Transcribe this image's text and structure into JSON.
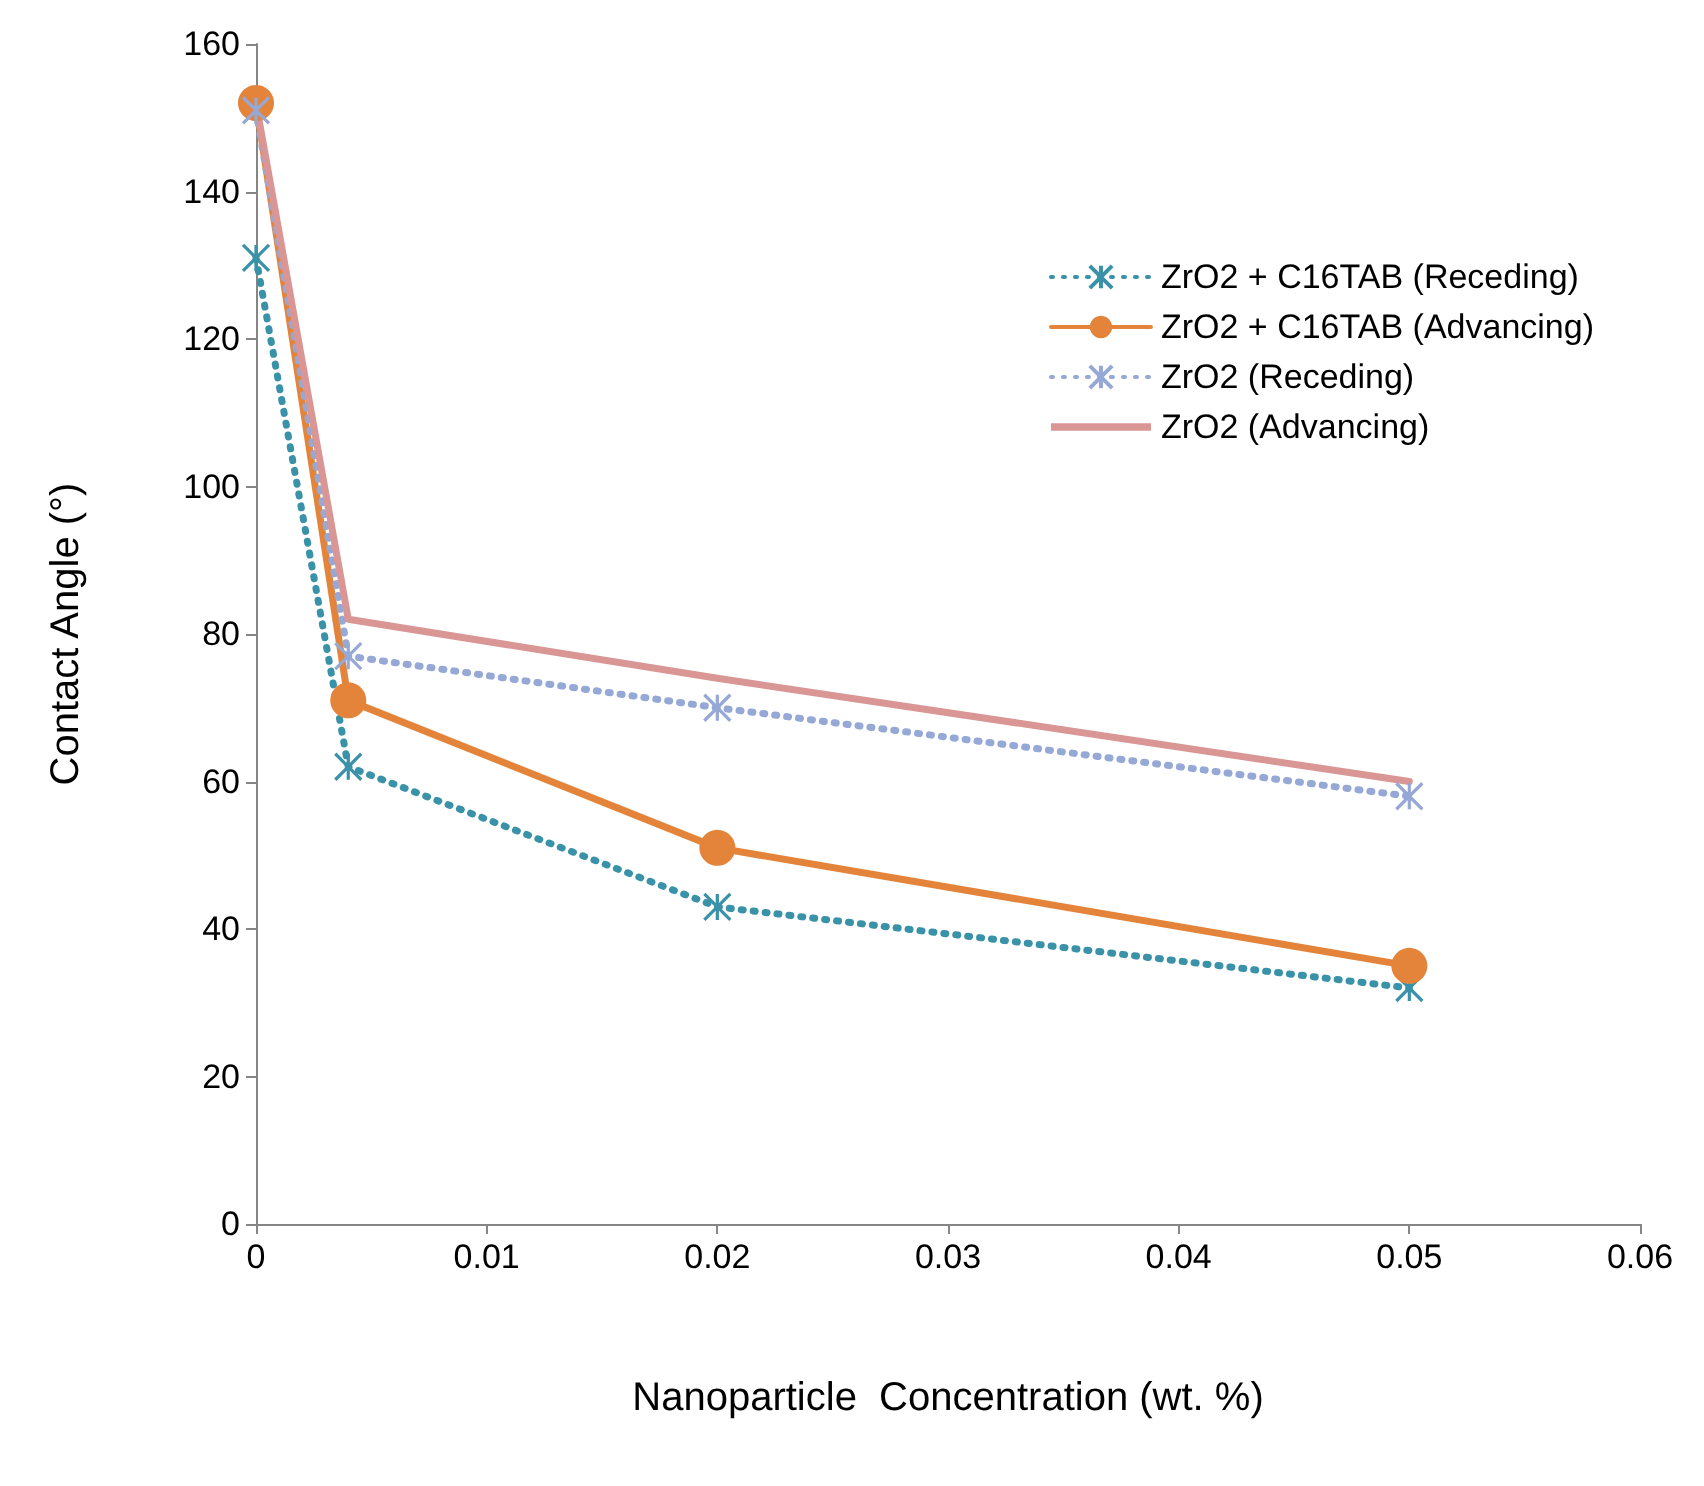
{
  "chart_data": {
    "type": "line",
    "xlabel": "Nanoparticle  Concentration (wt. %)",
    "ylabel": "Contact Angle (°)",
    "x": [
      0,
      0.004,
      0.02,
      0.05
    ],
    "series": [
      {
        "name": "ZrO2 + C16TAB (Receding)",
        "color": "#3a92a8",
        "values": [
          131,
          62,
          43,
          32
        ],
        "marker": "cross",
        "line_style": "dotted"
      },
      {
        "name": "ZrO2 + C16TAB (Advancing)",
        "color": "#e4843a",
        "values": [
          152,
          71,
          51,
          35
        ],
        "marker": "circle",
        "line_style": "solid"
      },
      {
        "name": "ZrO2 (Receding)",
        "color": "#95a8d6",
        "values": [
          151,
          77,
          70,
          58
        ],
        "marker": "cross",
        "line_style": "dotted"
      },
      {
        "name": "ZrO2 (Advancing)",
        "color": "#d99694",
        "values": [
          152,
          82,
          74,
          60
        ],
        "marker": "none",
        "line_style": "solid"
      }
    ],
    "xlim": [
      0,
      0.06
    ],
    "xticks": [
      0,
      0.01,
      0.02,
      0.03,
      0.04,
      0.05,
      0.06
    ],
    "ylim": [
      0,
      160
    ],
    "yticks": [
      0,
      20,
      40,
      60,
      80,
      100,
      120,
      140,
      160
    ],
    "grid": false,
    "legend": "top right"
  }
}
